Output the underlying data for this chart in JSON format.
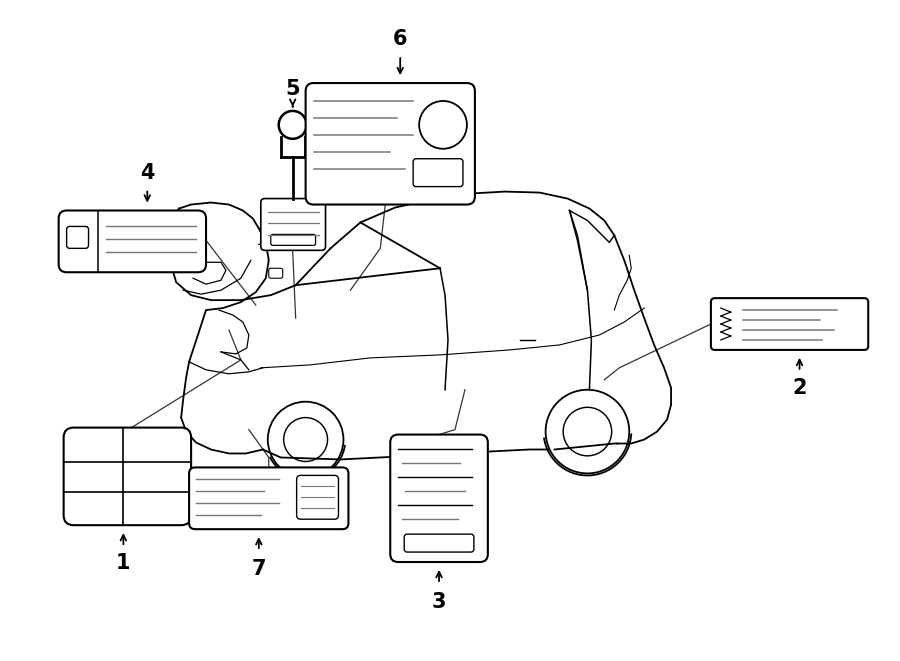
{
  "bg_color": "#ffffff",
  "lc": "#000000",
  "gc": "#777777",
  "figsize": [
    9.0,
    6.61
  ],
  "dpi": 100,
  "xlim": [
    0,
    900
  ],
  "ylim": [
    0,
    661
  ]
}
